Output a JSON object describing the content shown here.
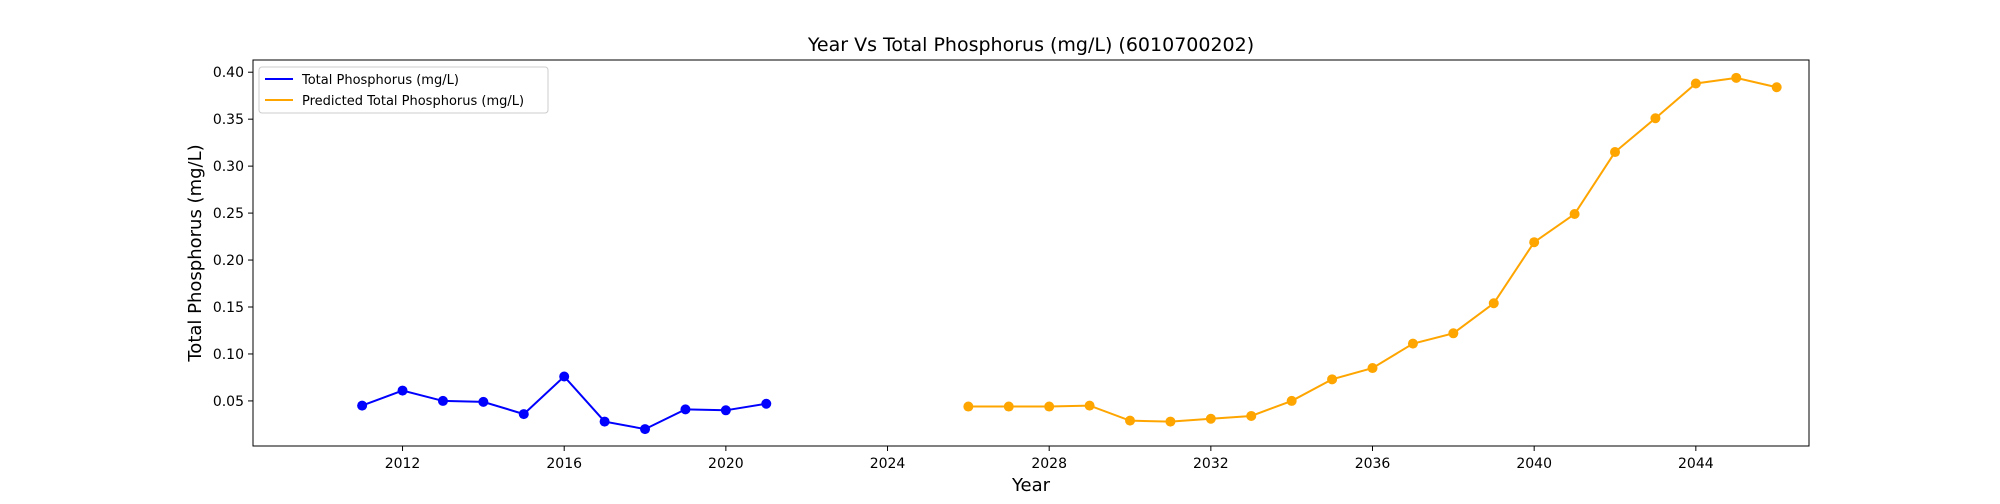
{
  "chart_data": {
    "type": "line",
    "title": "Year Vs Total Phosphorus (mg/L) (6010700202)",
    "xlabel": "Year",
    "ylabel": "Total Phosphorus (mg/L)",
    "xlim": [
      2008.3,
      2046.8
    ],
    "ylim": [
      0.002,
      0.413
    ],
    "x_ticks": [
      2012,
      2016,
      2020,
      2024,
      2028,
      2032,
      2036,
      2040,
      2044
    ],
    "y_ticks": [
      0.05,
      0.1,
      0.15,
      0.2,
      0.25,
      0.3,
      0.35,
      0.4
    ],
    "y_tick_labels": [
      "0.05",
      "0.10",
      "0.15",
      "0.20",
      "0.25",
      "0.30",
      "0.35",
      "0.40"
    ],
    "grid": false,
    "legend_position": "top-left",
    "series": [
      {
        "name": "Total Phosphorus (mg/L)",
        "color": "#0000ff",
        "marker": "circle",
        "x": [
          2011,
          2012,
          2013,
          2014,
          2015,
          2016,
          2017,
          2018,
          2019,
          2020,
          2021
        ],
        "y": [
          0.045,
          0.061,
          0.05,
          0.049,
          0.036,
          0.076,
          0.028,
          0.02,
          0.041,
          0.04,
          0.047
        ]
      },
      {
        "name": "Predicted Total Phosphorus (mg/L)",
        "color": "#ffa500",
        "marker": "circle",
        "x": [
          2026,
          2027,
          2028,
          2029,
          2030,
          2031,
          2032,
          2033,
          2034,
          2035,
          2036,
          2037,
          2038,
          2039,
          2040,
          2041,
          2042,
          2043,
          2044,
          2045,
          2046
        ],
        "y": [
          0.044,
          0.044,
          0.044,
          0.045,
          0.029,
          0.028,
          0.031,
          0.034,
          0.05,
          0.073,
          0.085,
          0.111,
          0.122,
          0.154,
          0.219,
          0.249,
          0.315,
          0.351,
          0.388,
          0.394,
          0.384
        ]
      }
    ]
  }
}
